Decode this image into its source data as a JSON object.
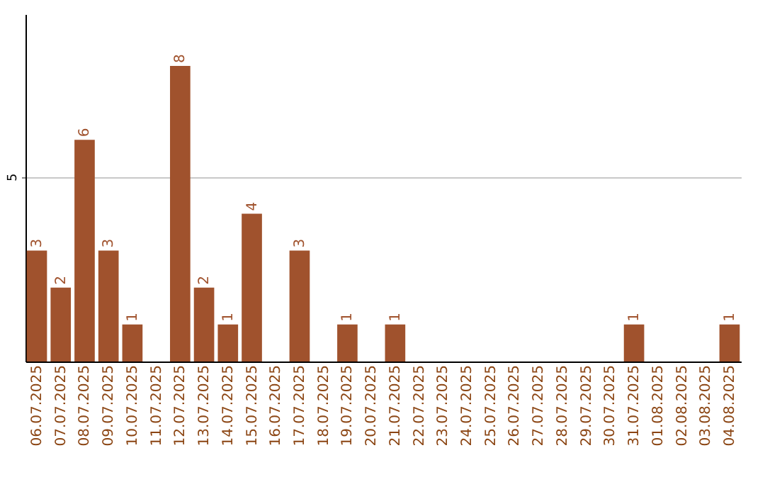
{
  "chart_data": {
    "type": "bar",
    "categories": [
      "06.07.2025",
      "07.07.2025",
      "08.07.2025",
      "09.07.2025",
      "10.07.2025",
      "11.07.2025",
      "12.07.2025",
      "13.07.2025",
      "14.07.2025",
      "15.07.2025",
      "16.07.2025",
      "17.07.2025",
      "18.07.2025",
      "19.07.2025",
      "20.07.2025",
      "21.07.2025",
      "22.07.2025",
      "23.07.2025",
      "24.07.2025",
      "25.07.2025",
      "26.07.2025",
      "27.07.2025",
      "28.07.2025",
      "29.07.2025",
      "30.07.2025",
      "31.07.2025",
      "01.08.2025",
      "02.08.2025",
      "03.08.2025",
      "04.08.2025"
    ],
    "values": [
      3,
      2,
      6,
      3,
      1,
      0,
      8,
      2,
      1,
      4,
      0,
      3,
      0,
      1,
      0,
      1,
      0,
      0,
      0,
      0,
      0,
      0,
      0,
      0,
      0,
      1,
      0,
      0,
      0,
      1
    ],
    "value_labels": [
      "3",
      "2",
      "6",
      "3",
      "1",
      null,
      "8",
      "2",
      "1",
      "4",
      null,
      "3",
      null,
      "1",
      null,
      "1",
      null,
      null,
      null,
      null,
      null,
      null,
      null,
      null,
      null,
      "1",
      null,
      null,
      null,
      "1"
    ],
    "color": "#a0522d",
    "ylim": [
      0,
      9.4
    ],
    "yticks": [
      5
    ],
    "grid": "y"
  }
}
